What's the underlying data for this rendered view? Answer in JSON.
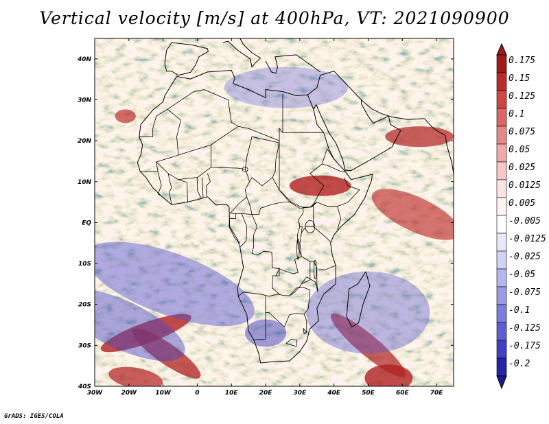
{
  "title": "Vertical velocity [m/s] at 400hPa, VT: 2021090900",
  "credit": "GrADS: IGES/COLA",
  "map": {
    "region": "Africa",
    "lon_range": [
      -30,
      75
    ],
    "lat_range": [
      -40,
      45
    ],
    "lat_ticks": [
      {
        "value": 40,
        "label": "40N"
      },
      {
        "value": 30,
        "label": "30N"
      },
      {
        "value": 20,
        "label": "20N"
      },
      {
        "value": 10,
        "label": "10N"
      },
      {
        "value": 0,
        "label": "EQ"
      },
      {
        "value": -10,
        "label": "10S"
      },
      {
        "value": -20,
        "label": "20S"
      },
      {
        "value": -30,
        "label": "30S"
      },
      {
        "value": -40,
        "label": "40S"
      }
    ],
    "lon_ticks": [
      {
        "value": -30,
        "label": "30W"
      },
      {
        "value": -20,
        "label": "20W"
      },
      {
        "value": -10,
        "label": "10W"
      },
      {
        "value": 0,
        "label": "0"
      },
      {
        "value": 10,
        "label": "10E"
      },
      {
        "value": 20,
        "label": "20E"
      },
      {
        "value": 30,
        "label": "30E"
      },
      {
        "value": 40,
        "label": "40E"
      },
      {
        "value": 50,
        "label": "50E"
      },
      {
        "value": 60,
        "label": "60E"
      },
      {
        "value": 70,
        "label": "70E"
      }
    ]
  },
  "colorbar": {
    "levels": [
      {
        "label": "0.175",
        "color": "#a01818"
      },
      {
        "label": "0.15",
        "color": "#bd2a2a"
      },
      {
        "label": "0.125",
        "color": "#d04444"
      },
      {
        "label": "0.1",
        "color": "#df6464"
      },
      {
        "label": "0.075",
        "color": "#e98686"
      },
      {
        "label": "0.05",
        "color": "#f2a8a8"
      },
      {
        "label": "0.025",
        "color": "#f8c8c8"
      },
      {
        "label": "0.0125",
        "color": "#fce2e2"
      },
      {
        "label": "0.005",
        "color": "#fef4f4"
      },
      {
        "label": "-0.005",
        "color": "#ffffff"
      },
      {
        "label": "-0.0125",
        "color": "#e8e8fb"
      },
      {
        "label": "-0.025",
        "color": "#d2d2f6"
      },
      {
        "label": "-0.05",
        "color": "#b6b6ef"
      },
      {
        "label": "-0.075",
        "color": "#9a9ae8"
      },
      {
        "label": "-0.1",
        "color": "#7c7cdf"
      },
      {
        "label": "-0.125",
        "color": "#5e5ed4"
      },
      {
        "label": "-0.175",
        "color": "#4040c4"
      },
      {
        "label": "-0.2",
        "color": "#2424a8"
      }
    ],
    "bottom_color": "#1a1a90"
  }
}
